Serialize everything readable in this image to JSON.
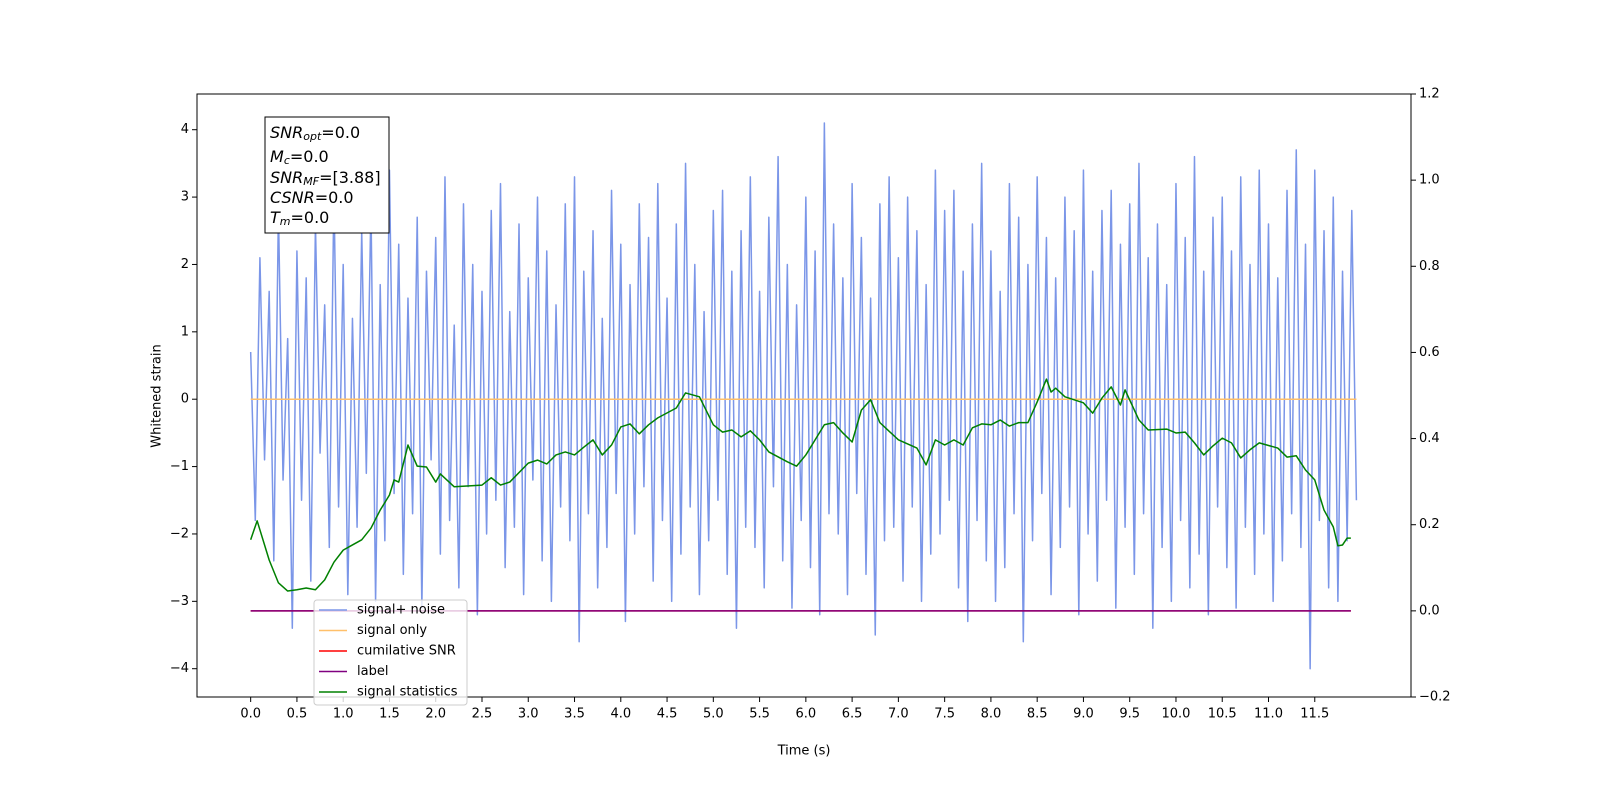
{
  "chart_data": {
    "type": "line",
    "xlabel": "Time (s)",
    "ylabel": "Whitened strain",
    "xlim": [
      -0.58,
      12.54
    ],
    "ylim": [
      -4.42,
      4.53
    ],
    "y2lim": [
      -0.2,
      1.2
    ],
    "xticks": [
      {
        "value": 0,
        "label": "0.0"
      },
      0.5,
      {
        "value": 1,
        "label": "1.0"
      },
      1.5,
      {
        "value": 2,
        "label": "2.0"
      },
      2.5,
      {
        "value": 3,
        "label": "3.0"
      },
      3.5,
      {
        "value": 4,
        "label": "4.0"
      },
      4.5,
      {
        "value": 5,
        "label": "5.0"
      },
      5.5,
      {
        "value": 6,
        "label": "6.0"
      },
      6.5,
      {
        "value": 7,
        "label": "7.0"
      },
      7.5,
      {
        "value": 8,
        "label": "8.0"
      },
      8.5,
      {
        "value": 9,
        "label": "9.0"
      },
      9.5,
      {
        "value": 10,
        "label": "10.0"
      },
      10.5,
      {
        "value": 11,
        "label": "11.0"
      },
      11.5
    ],
    "yticks": [
      {
        "value": -4,
        "label": "−4"
      },
      {
        "value": -3,
        "label": "−3"
      },
      {
        "value": -2,
        "label": "−2"
      },
      {
        "value": -1,
        "label": "−1"
      },
      0,
      1,
      2,
      3,
      4
    ],
    "y2ticks": [
      {
        "value": -0.2,
        "label": "−0.2"
      },
      {
        "value": 0,
        "label": "0.0"
      },
      0.2,
      0.4,
      0.6,
      0.8,
      {
        "value": 1,
        "label": "1.0"
      },
      1.2
    ],
    "grid": false,
    "legend_loc": "lower left",
    "annotation": [
      {
        "main": "SNR",
        "sub": "opt",
        "rest": "=0.0"
      },
      {
        "main": "M",
        "sub": "c",
        "rest": "=0.0"
      },
      {
        "main": "SNR",
        "sub": "MF",
        "rest": "=[3.88]"
      },
      {
        "main": "CSNR",
        "rest": "=0.0"
      },
      {
        "main": "T",
        "sub": "m",
        "rest": "=0.0"
      }
    ],
    "series": [
      {
        "name": "signal+ noise",
        "color": "#7b96e8",
        "axis": "y",
        "x": [
          0,
          0.05,
          0.1,
          0.15,
          0.2,
          0.25,
          0.3,
          0.35,
          0.4,
          0.45,
          0.5,
          0.55,
          0.6,
          0.65,
          0.7,
          0.75,
          0.8,
          0.85,
          0.9,
          0.95,
          1,
          1.05,
          1.1,
          1.15,
          1.2,
          1.25,
          1.3,
          1.35,
          1.4,
          1.45,
          1.5,
          1.55,
          1.6,
          1.65,
          1.7,
          1.75,
          1.8,
          1.85,
          1.9,
          1.95,
          2,
          2.05,
          2.1,
          2.15,
          2.2,
          2.25,
          2.3,
          2.35,
          2.4,
          2.45,
          2.5,
          2.55,
          2.6,
          2.65,
          2.7,
          2.75,
          2.8,
          2.85,
          2.9,
          2.95,
          3,
          3.05,
          3.1,
          3.15,
          3.2,
          3.25,
          3.3,
          3.35,
          3.4,
          3.45,
          3.5,
          3.55,
          3.6,
          3.65,
          3.7,
          3.75,
          3.8,
          3.85,
          3.9,
          3.95,
          4,
          4.05,
          4.1,
          4.15,
          4.2,
          4.25,
          4.3,
          4.35,
          4.4,
          4.45,
          4.5,
          4.55,
          4.6,
          4.65,
          4.7,
          4.75,
          4.8,
          4.85,
          4.9,
          4.95,
          5,
          5.05,
          5.1,
          5.15,
          5.2,
          5.25,
          5.3,
          5.35,
          5.4,
          5.45,
          5.5,
          5.55,
          5.6,
          5.65,
          5.7,
          5.75,
          5.8,
          5.85,
          5.9,
          5.95,
          6,
          6.05,
          6.1,
          6.15,
          6.2,
          6.25,
          6.3,
          6.35,
          6.4,
          6.45,
          6.5,
          6.55,
          6.6,
          6.65,
          6.7,
          6.75,
          6.8,
          6.85,
          6.9,
          6.95,
          7,
          7.05,
          7.1,
          7.15,
          7.2,
          7.25,
          7.3,
          7.35,
          7.4,
          7.45,
          7.5,
          7.55,
          7.6,
          7.65,
          7.7,
          7.75,
          7.8,
          7.85,
          7.9,
          7.95,
          8,
          8.05,
          8.1,
          8.15,
          8.2,
          8.25,
          8.3,
          8.35,
          8.4,
          8.45,
          8.5,
          8.55,
          8.6,
          8.65,
          8.7,
          8.75,
          8.8,
          8.85,
          8.9,
          8.95,
          9,
          9.05,
          9.1,
          9.15,
          9.2,
          9.25,
          9.3,
          9.35,
          9.4,
          9.45,
          9.5,
          9.55,
          9.6,
          9.65,
          9.7,
          9.75,
          9.8,
          9.85,
          9.9,
          9.95,
          10,
          10.05,
          10.1,
          10.15,
          10.2,
          10.25,
          10.3,
          10.35,
          10.4,
          10.45,
          10.5,
          10.55,
          10.6,
          10.65,
          10.7,
          10.75,
          10.8,
          10.85,
          10.9,
          10.95,
          11,
          11.05,
          11.1,
          11.15,
          11.2,
          11.25,
          11.3,
          11.35,
          11.4,
          11.45,
          11.5,
          11.55,
          11.6,
          11.65,
          11.7,
          11.75,
          11.8,
          11.85,
          11.9,
          11.95
        ],
        "values": [
          0.7,
          -1.8,
          2.1,
          -0.9,
          1.6,
          -2.4,
          2.8,
          -1.2,
          0.9,
          -3.4,
          2.2,
          -1.5,
          1.8,
          -2.7,
          2.6,
          -0.8,
          1.4,
          -2.2,
          3.1,
          -1.6,
          2.0,
          -2.9,
          1.2,
          -1.9,
          2.5,
          -1.1,
          2.9,
          -3.0,
          1.7,
          -2.1,
          3.4,
          -1.4,
          2.3,
          -2.6,
          1.5,
          -1.7,
          2.7,
          -3.1,
          1.9,
          -0.9,
          2.4,
          -2.3,
          3.3,
          -1.8,
          1.1,
          -2.8,
          2.9,
          -1.3,
          2.0,
          -3.2,
          1.6,
          -2.0,
          2.8,
          -1.5,
          3.2,
          -2.5,
          1.3,
          -1.9,
          2.6,
          -2.9,
          1.8,
          -1.2,
          3.0,
          -2.4,
          2.2,
          -3.0,
          1.4,
          -1.6,
          2.9,
          -2.1,
          3.3,
          -3.6,
          1.9,
          -1.7,
          2.5,
          -2.8,
          1.2,
          -2.2,
          3.1,
          -1.4,
          2.3,
          -3.3,
          1.7,
          -2.0,
          2.9,
          -1.3,
          2.4,
          -2.7,
          3.2,
          -1.8,
          1.5,
          -3.0,
          2.6,
          -2.3,
          3.5,
          -1.6,
          2.0,
          -2.9,
          1.3,
          -2.1,
          2.8,
          -1.5,
          3.1,
          -2.6,
          1.9,
          -3.4,
          2.5,
          -1.9,
          3.3,
          -2.2,
          1.6,
          -2.8,
          2.7,
          -1.3,
          3.6,
          -2.4,
          2.0,
          -3.1,
          1.4,
          -1.8,
          3.0,
          -2.5,
          2.2,
          -3.2,
          4.1,
          -1.7,
          2.6,
          -2.0,
          1.8,
          -2.9,
          3.2,
          -1.4,
          2.4,
          -2.6,
          1.5,
          -3.5,
          2.9,
          -2.1,
          3.3,
          -1.9,
          2.1,
          -2.7,
          3.0,
          -1.6,
          2.5,
          -3.0,
          1.7,
          -2.3,
          3.4,
          -2.0,
          2.8,
          -1.5,
          3.1,
          -2.8,
          1.9,
          -3.3,
          2.6,
          -1.8,
          3.5,
          -2.4,
          2.2,
          -3.0,
          1.6,
          -2.5,
          3.2,
          -1.7,
          2.7,
          -3.6,
          2.0,
          -2.1,
          3.3,
          -1.4,
          2.4,
          -2.9,
          1.8,
          -2.2,
          3.0,
          -1.6,
          2.5,
          -3.2,
          3.4,
          -2.0,
          1.9,
          -2.7,
          2.8,
          -1.5,
          3.1,
          -3.1,
          2.3,
          -1.9,
          2.9,
          -2.6,
          3.5,
          -1.7,
          2.1,
          -3.4,
          2.6,
          -2.2,
          1.7,
          -3.0,
          3.2,
          -1.8,
          2.4,
          -2.8,
          3.6,
          -2.3,
          1.9,
          -3.2,
          2.7,
          -1.6,
          3.0,
          -2.5,
          2.2,
          -3.1,
          3.3,
          -1.9,
          2.0,
          -2.6,
          3.4,
          -2.0,
          2.6,
          -3.0,
          1.8,
          -2.4,
          3.1,
          -1.7,
          3.7,
          -2.2,
          2.3,
          -4.0,
          3.4,
          -1.8,
          2.5,
          -2.8,
          3.0,
          -3.0,
          1.9,
          -2.1,
          2.8,
          -1.5
        ]
      },
      {
        "name": "signal only",
        "color": "#ffc06a",
        "axis": "y",
        "x": [
          0,
          11.95
        ],
        "values": [
          0,
          0
        ]
      },
      {
        "name": "cumilative SNR",
        "color": "#ff0000",
        "axis": "y2",
        "x": [
          0,
          11.89
        ],
        "values": [
          0,
          0
        ]
      },
      {
        "name": "label",
        "color": "#800080",
        "axis": "y2",
        "x": [
          0,
          11.89
        ],
        "values": [
          0,
          0
        ]
      },
      {
        "name": "signal statistics",
        "color": "#008000",
        "axis": "y2",
        "x": [
          0,
          0.07,
          0.2,
          0.3,
          0.4,
          0.5,
          0.6,
          0.7,
          0.8,
          0.9,
          1.0,
          1.1,
          1.2,
          1.3,
          1.4,
          1.5,
          1.55,
          1.6,
          1.7,
          1.8,
          1.9,
          2.0,
          2.05,
          2.2,
          2.5,
          2.6,
          2.7,
          2.8,
          3.0,
          3.1,
          3.2,
          3.3,
          3.4,
          3.5,
          3.6,
          3.7,
          3.8,
          3.9,
          4.0,
          4.1,
          4.2,
          4.3,
          4.4,
          4.6,
          4.7,
          4.85,
          5.0,
          5.1,
          5.2,
          5.3,
          5.4,
          5.5,
          5.6,
          5.8,
          5.9,
          6.0,
          6.1,
          6.2,
          6.3,
          6.4,
          6.5,
          6.6,
          6.7,
          6.8,
          7.0,
          7.2,
          7.3,
          7.4,
          7.5,
          7.6,
          7.7,
          7.8,
          7.9,
          8.0,
          8.1,
          8.2,
          8.3,
          8.4,
          8.5,
          8.6,
          8.65,
          8.7,
          8.8,
          9.0,
          9.1,
          9.2,
          9.3,
          9.4,
          9.45,
          9.6,
          9.7,
          9.9,
          10.0,
          10.1,
          10.2,
          10.3,
          10.4,
          10.5,
          10.6,
          10.7,
          10.8,
          10.9,
          11.1,
          11.2,
          11.3,
          11.4,
          11.5,
          11.6,
          11.7,
          11.75,
          11.8,
          11.85,
          11.89
        ],
        "values": [
          0.165,
          0.209,
          0.118,
          0.065,
          0.046,
          0.049,
          0.053,
          0.049,
          0.072,
          0.113,
          0.141,
          0.153,
          0.165,
          0.192,
          0.234,
          0.269,
          0.304,
          0.299,
          0.385,
          0.336,
          0.334,
          0.299,
          0.318,
          0.288,
          0.292,
          0.309,
          0.292,
          0.299,
          0.343,
          0.35,
          0.341,
          0.362,
          0.369,
          0.362,
          0.38,
          0.397,
          0.362,
          0.385,
          0.427,
          0.434,
          0.411,
          0.432,
          0.448,
          0.471,
          0.506,
          0.497,
          0.432,
          0.415,
          0.42,
          0.404,
          0.418,
          0.397,
          0.369,
          0.346,
          0.336,
          0.362,
          0.397,
          0.432,
          0.437,
          0.413,
          0.392,
          0.466,
          0.49,
          0.437,
          0.397,
          0.378,
          0.339,
          0.397,
          0.385,
          0.397,
          0.385,
          0.425,
          0.434,
          0.432,
          0.443,
          0.429,
          0.437,
          0.437,
          0.485,
          0.538,
          0.508,
          0.517,
          0.497,
          0.483,
          0.459,
          0.494,
          0.52,
          0.478,
          0.513,
          0.443,
          0.42,
          0.422,
          0.413,
          0.415,
          0.39,
          0.362,
          0.383,
          0.401,
          0.39,
          0.355,
          0.374,
          0.39,
          0.378,
          0.357,
          0.36,
          0.327,
          0.304,
          0.234,
          0.195,
          0.151,
          0.153,
          0.169,
          0.169
        ]
      }
    ]
  }
}
